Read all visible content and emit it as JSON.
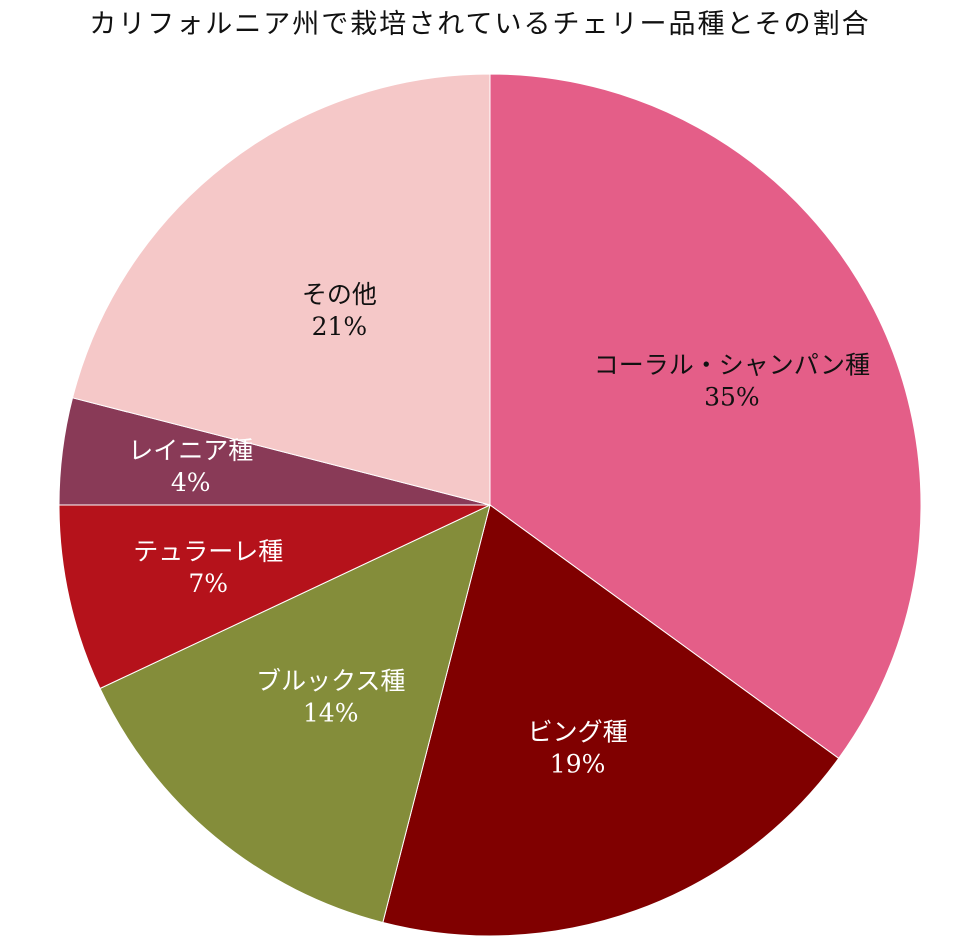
{
  "chart_data": {
    "type": "pie",
    "title": "カリフォルニア州で栽培されているチェリー品種とその割合",
    "slices": [
      {
        "label": "コーラル・シャンパン種",
        "value": 35,
        "value_label": "35%",
        "color": "#E45E88",
        "text_color": "#111111"
      },
      {
        "label": "ビング種",
        "value": 19,
        "value_label": "19%",
        "color": "#800000",
        "text_color": "#ffffff"
      },
      {
        "label": "ブルックス種",
        "value": 14,
        "value_label": "14%",
        "color": "#848D3A",
        "text_color": "#ffffff"
      },
      {
        "label": "テュラーレ種",
        "value": 7,
        "value_label": "7%",
        "color": "#B5121B",
        "text_color": "#ffffff"
      },
      {
        "label": "レイニア種",
        "value": 4,
        "value_label": "4%",
        "color": "#893A57",
        "text_color": "#ffffff"
      },
      {
        "label": "その他",
        "value": 21,
        "value_label": "21%",
        "color": "#F5C8C8",
        "text_color": "#111111"
      }
    ],
    "start": "12 o'clock",
    "direction": "clockwise",
    "legend": "none"
  }
}
